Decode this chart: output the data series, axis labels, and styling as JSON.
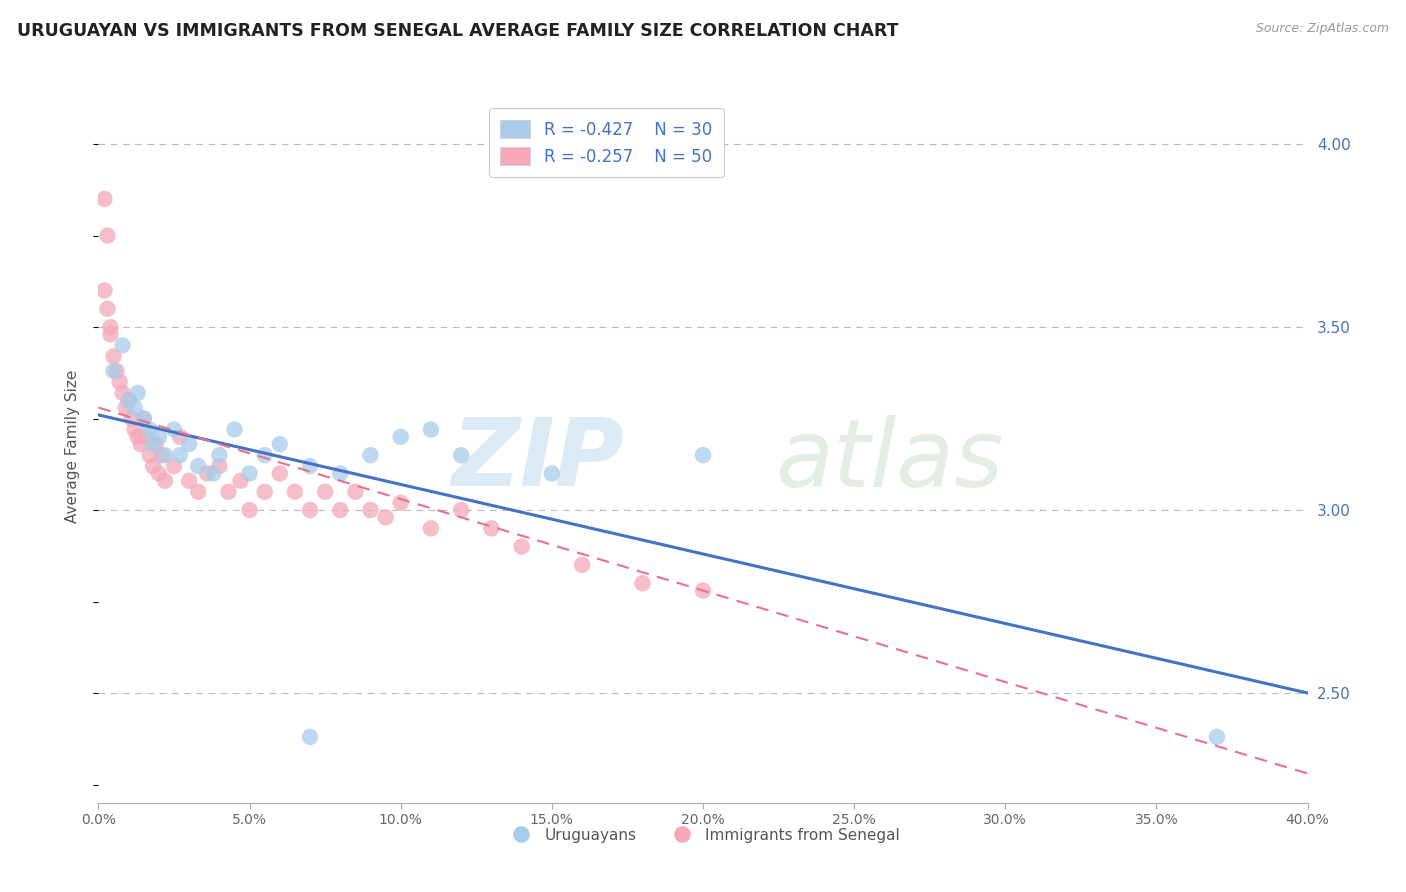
{
  "title": "URUGUAYAN VS IMMIGRANTS FROM SENEGAL AVERAGE FAMILY SIZE CORRELATION CHART",
  "source": "Source: ZipAtlas.com",
  "ylabel": "Average Family Size",
  "xlim": [
    0.0,
    0.4
  ],
  "ylim": [
    2.2,
    4.15
  ],
  "yticks_right": [
    2.5,
    3.0,
    3.5,
    4.0
  ],
  "xtick_vals": [
    0.0,
    0.05,
    0.1,
    0.15,
    0.2,
    0.25,
    0.3,
    0.35,
    0.4
  ],
  "legend_blue_label": "R = -0.427    N = 30",
  "legend_pink_label": "R = -0.257    N = 50",
  "legend_bottom_blue": "Uruguayans",
  "legend_bottom_pink": "Immigrants from Senegal",
  "blue_color": "#A8CCEA",
  "pink_color": "#F4A8B8",
  "blue_line_color": "#4472C4",
  "pink_line_color": "#E87090",
  "blue_scatter_x": [
    0.005,
    0.008,
    0.01,
    0.012,
    0.013,
    0.015,
    0.017,
    0.018,
    0.02,
    0.022,
    0.025,
    0.027,
    0.03,
    0.033,
    0.038,
    0.04,
    0.045,
    0.05,
    0.055,
    0.06,
    0.07,
    0.08,
    0.09,
    0.1,
    0.11,
    0.12,
    0.15,
    0.2,
    0.07,
    0.37
  ],
  "blue_scatter_y": [
    3.38,
    3.45,
    3.3,
    3.28,
    3.32,
    3.25,
    3.22,
    3.18,
    3.2,
    3.15,
    3.22,
    3.15,
    3.18,
    3.12,
    3.1,
    3.15,
    3.22,
    3.1,
    3.15,
    3.18,
    3.12,
    3.1,
    3.15,
    3.2,
    3.22,
    3.15,
    3.1,
    3.15,
    2.38,
    2.38
  ],
  "pink_scatter_x": [
    0.002,
    0.003,
    0.004,
    0.005,
    0.006,
    0.007,
    0.008,
    0.009,
    0.01,
    0.011,
    0.012,
    0.013,
    0.014,
    0.015,
    0.016,
    0.017,
    0.018,
    0.019,
    0.02,
    0.021,
    0.022,
    0.025,
    0.027,
    0.03,
    0.033,
    0.036,
    0.04,
    0.043,
    0.047,
    0.05,
    0.055,
    0.06,
    0.065,
    0.07,
    0.075,
    0.08,
    0.085,
    0.09,
    0.095,
    0.1,
    0.11,
    0.12,
    0.13,
    0.14,
    0.16,
    0.18,
    0.2,
    0.002,
    0.003,
    0.004
  ],
  "pink_scatter_y": [
    3.85,
    3.75,
    3.5,
    3.42,
    3.38,
    3.35,
    3.32,
    3.28,
    3.3,
    3.25,
    3.22,
    3.2,
    3.18,
    3.25,
    3.2,
    3.15,
    3.12,
    3.18,
    3.1,
    3.15,
    3.08,
    3.12,
    3.2,
    3.08,
    3.05,
    3.1,
    3.12,
    3.05,
    3.08,
    3.0,
    3.05,
    3.1,
    3.05,
    3.0,
    3.05,
    3.0,
    3.05,
    3.0,
    2.98,
    3.02,
    2.95,
    3.0,
    2.95,
    2.9,
    2.85,
    2.8,
    2.78,
    3.6,
    3.55,
    3.48
  ],
  "blue_line_x": [
    0.0,
    0.4
  ],
  "blue_line_y": [
    3.26,
    2.5
  ],
  "pink_line_x": [
    0.0,
    0.4
  ],
  "pink_line_y": [
    3.28,
    2.28
  ],
  "watermark_zip": "ZIP",
  "watermark_atlas": "atlas"
}
